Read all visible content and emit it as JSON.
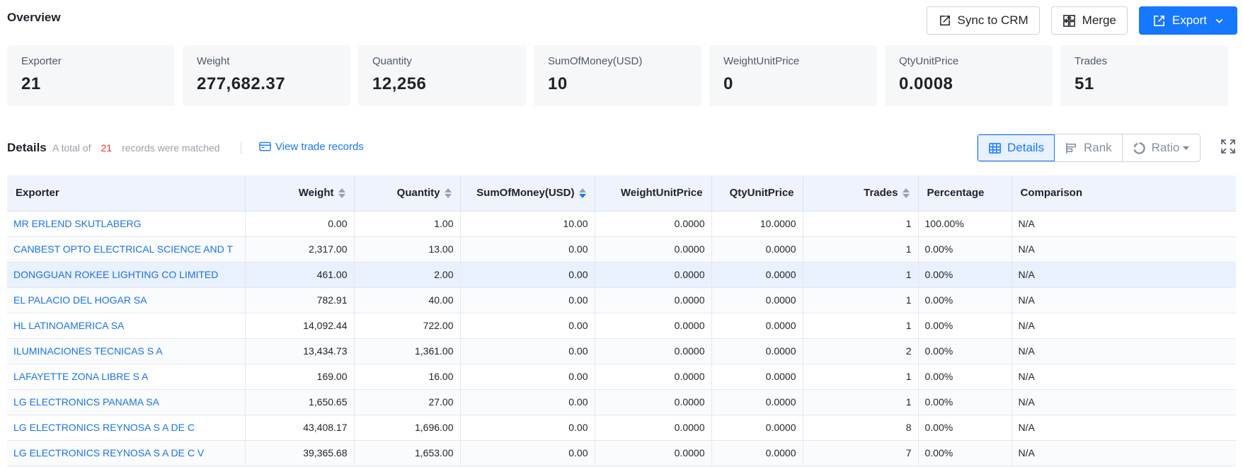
{
  "overview": {
    "title": "Overview",
    "buttons": {
      "sync": "Sync to CRM",
      "merge": "Merge",
      "export": "Export"
    }
  },
  "cards": [
    {
      "label": "Exporter",
      "value": "21"
    },
    {
      "label": "Weight",
      "value": "277,682.37"
    },
    {
      "label": "Quantity",
      "value": "12,256"
    },
    {
      "label": "SumOfMoney(USD)",
      "value": "10"
    },
    {
      "label": "WeightUnitPrice",
      "value": "0"
    },
    {
      "label": "QtyUnitPrice",
      "value": "0.0008"
    },
    {
      "label": "Trades",
      "value": "51"
    }
  ],
  "details": {
    "title": "Details",
    "match_prefix": "A total of",
    "match_count": "21",
    "match_suffix": "records were matched",
    "view_link": "View trade records",
    "views": {
      "details": "Details",
      "rank": "Rank",
      "ratio": "Ratio"
    }
  },
  "table": {
    "columns": [
      "Exporter",
      "Weight",
      "Quantity",
      "SumOfMoney(USD)",
      "WeightUnitPrice",
      "QtyUnitPrice",
      "Trades",
      "Percentage",
      "Comparison"
    ],
    "rows": [
      [
        "MR ERLEND SKUTLABERG",
        "0.00",
        "1.00",
        "10.00",
        "0.0000",
        "10.0000",
        "1",
        "100.00%",
        "N/A"
      ],
      [
        "CANBEST OPTO ELECTRICAL SCIENCE AND T",
        "2,317.00",
        "13.00",
        "0.00",
        "0.0000",
        "0.0000",
        "1",
        "0.00%",
        "N/A"
      ],
      [
        "DONGGUAN ROKEE LIGHTING CO LIMITED",
        "461.00",
        "2.00",
        "0.00",
        "0.0000",
        "0.0000",
        "1",
        "0.00%",
        "N/A"
      ],
      [
        "EL PALACIO DEL HOGAR SA",
        "782.91",
        "40.00",
        "0.00",
        "0.0000",
        "0.0000",
        "1",
        "0.00%",
        "N/A"
      ],
      [
        "HL LATINOAMERICA SA",
        "14,092.44",
        "722.00",
        "0.00",
        "0.0000",
        "0.0000",
        "1",
        "0.00%",
        "N/A"
      ],
      [
        "ILUMINACIONES TECNICAS S A",
        "13,434.73",
        "1,361.00",
        "0.00",
        "0.0000",
        "0.0000",
        "2",
        "0.00%",
        "N/A"
      ],
      [
        "LAFAYETTE ZONA LIBRE S A",
        "169.00",
        "16.00",
        "0.00",
        "0.0000",
        "0.0000",
        "1",
        "0.00%",
        "N/A"
      ],
      [
        "LG ELECTRONICS PANAMA SA",
        "1,650.65",
        "27.00",
        "0.00",
        "0.0000",
        "0.0000",
        "1",
        "0.00%",
        "N/A"
      ],
      [
        "LG ELECTRONICS REYNOSA S A DE C",
        "43,408.17",
        "1,696.00",
        "0.00",
        "0.0000",
        "0.0000",
        "8",
        "0.00%",
        "N/A"
      ],
      [
        "LG ELECTRONICS REYNOSA S A DE C V",
        "39,365.68",
        "1,653.00",
        "0.00",
        "0.0000",
        "0.0000",
        "7",
        "0.00%",
        "N/A"
      ]
    ]
  }
}
